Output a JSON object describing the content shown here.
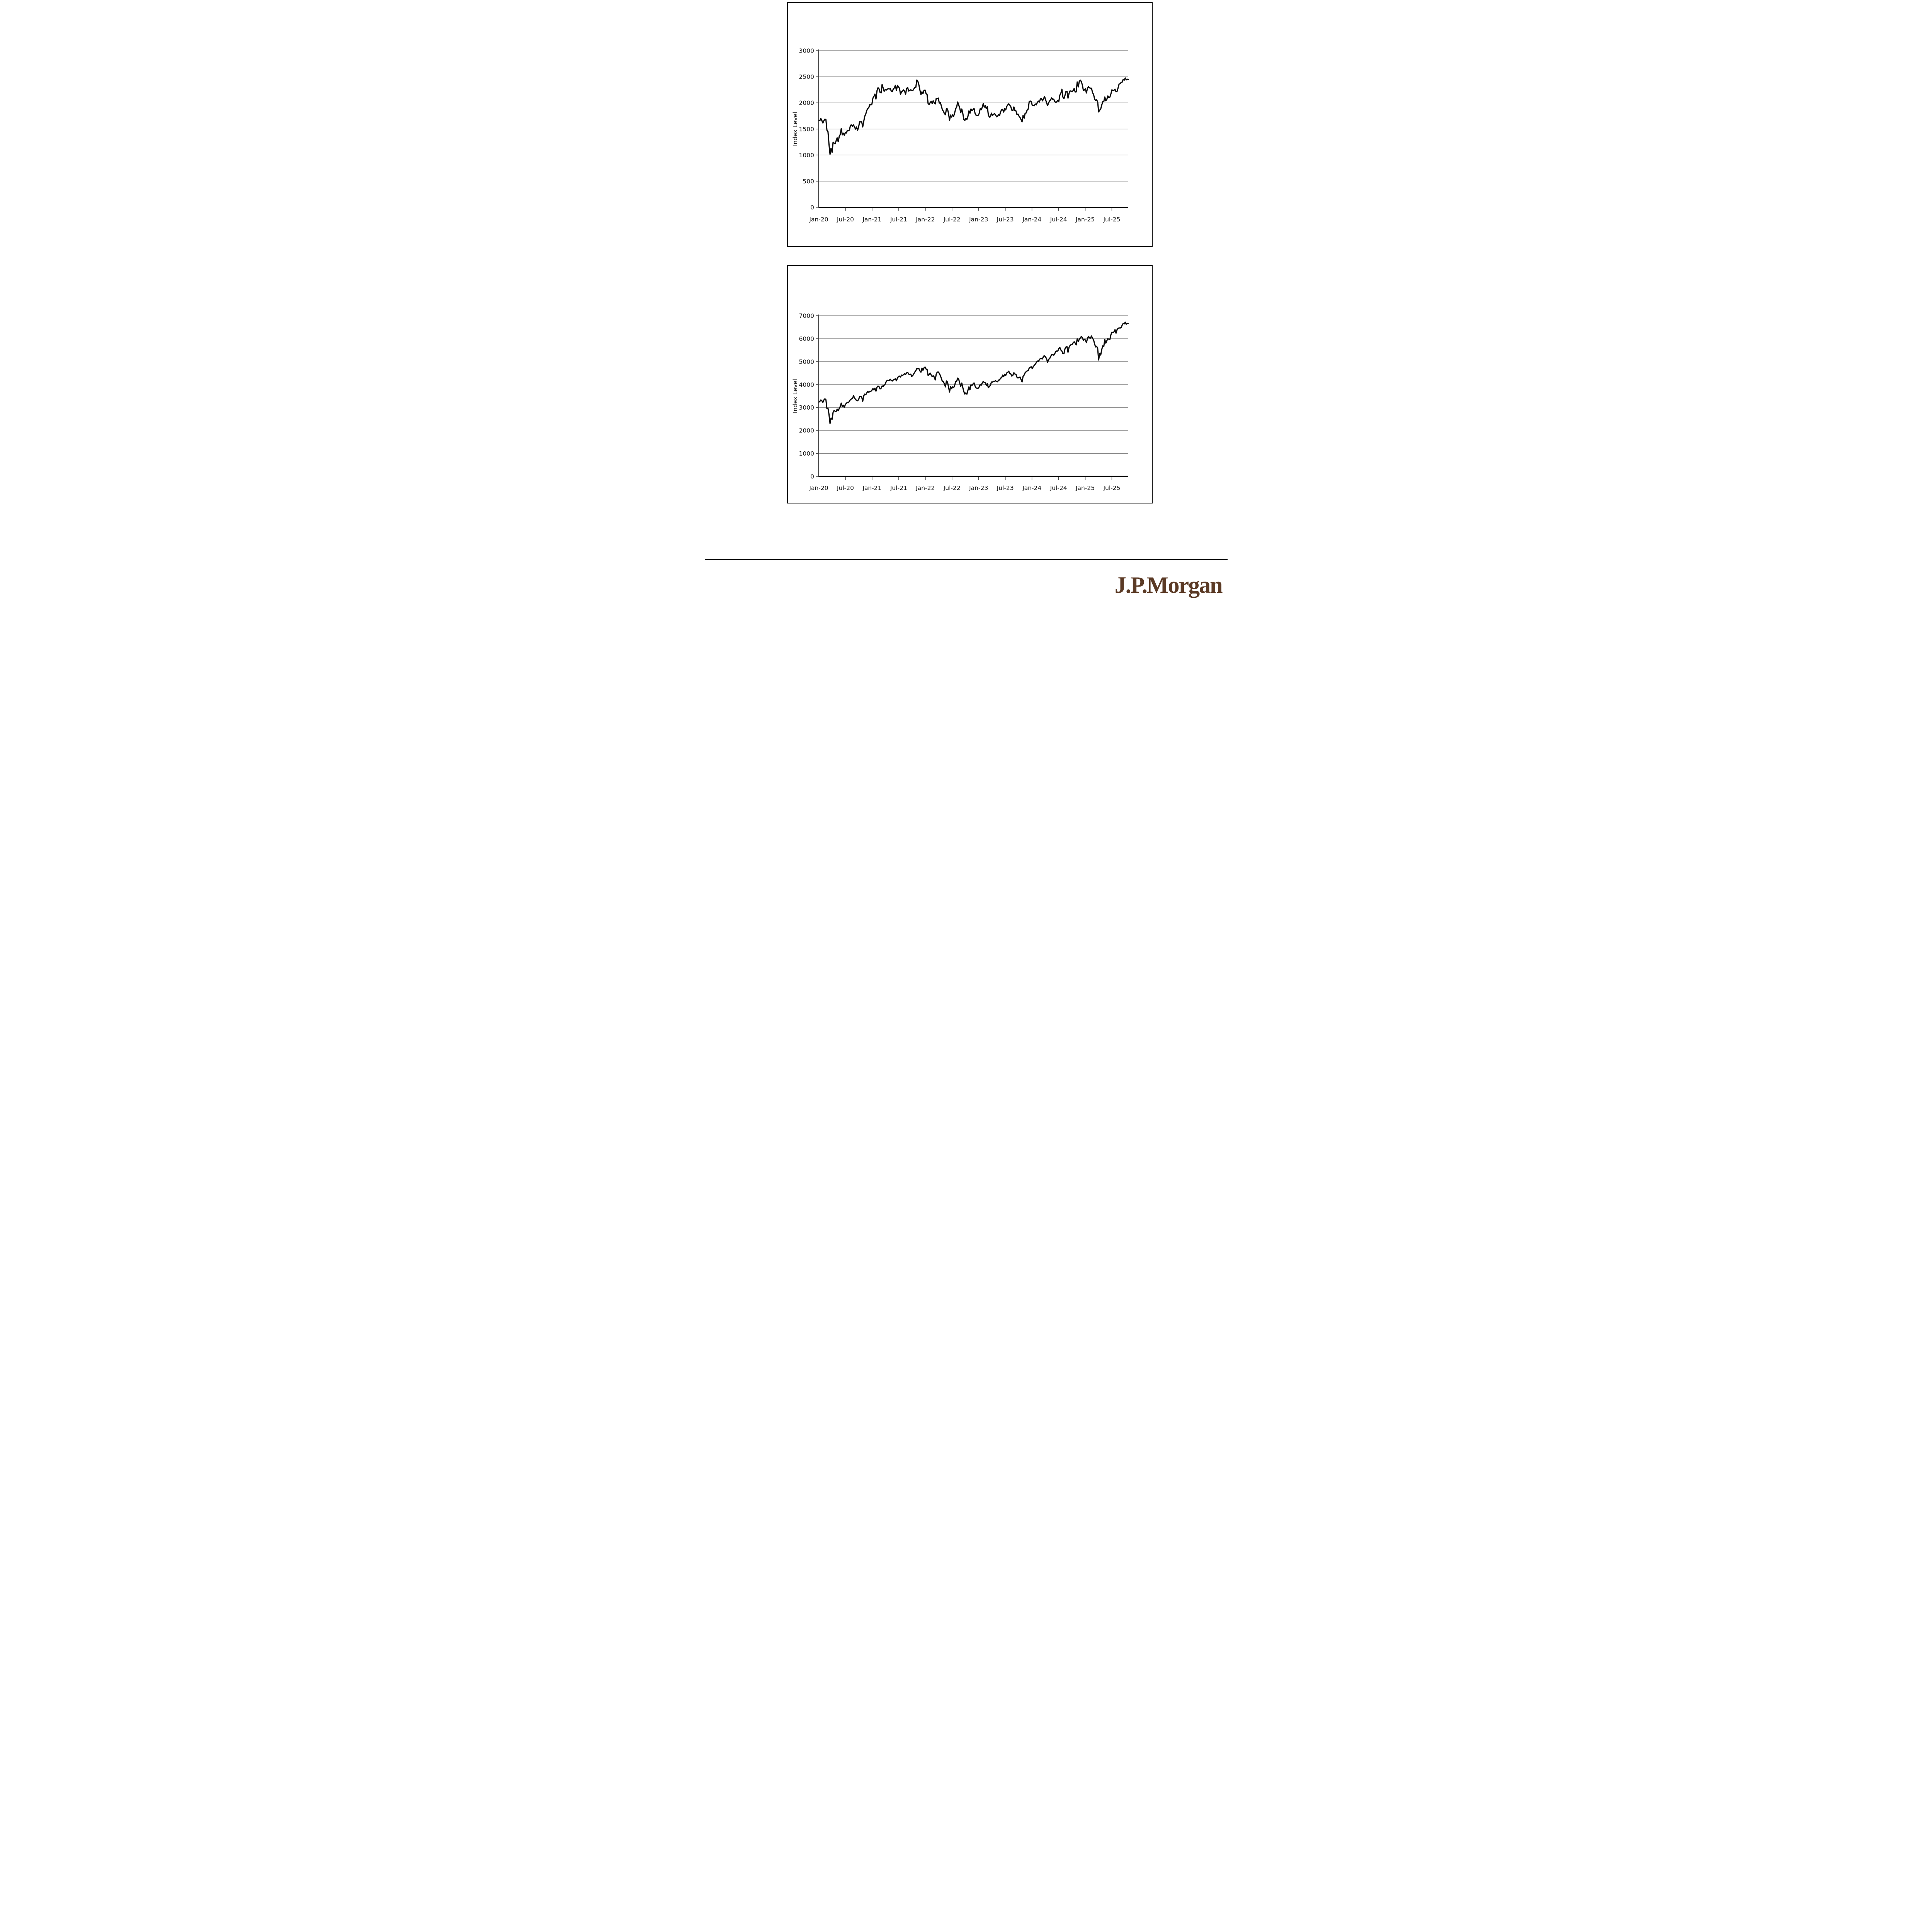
{
  "page": {
    "background": "#ffffff"
  },
  "footer": {
    "logo_text": "J.P.Morgan",
    "logo_color": "#5b3a25",
    "divider_color": "#000000"
  },
  "chart_data": [
    {
      "type": "line",
      "title": "",
      "xlabel": "",
      "ylabel": "Index Level",
      "ylim": [
        0,
        3000
      ],
      "ytick_interval": 500,
      "ytick_labels": [
        "0",
        "500",
        "1000",
        "1500",
        "2000",
        "2500",
        "3000"
      ],
      "xtick_labels": [
        "Jan-20",
        "Jul-20",
        "Jan-21",
        "Jul-21",
        "Jan-22",
        "Jul-22",
        "Jan-23",
        "Jul-23",
        "Jan-24",
        "Jul-24",
        "Jan-25",
        "Jul-25"
      ],
      "xtick_months": [
        0,
        6,
        12,
        18,
        24,
        30,
        36,
        42,
        48,
        54,
        60,
        66
      ],
      "frequency": "weekly",
      "end_month": 69.7,
      "grid": "horizontal",
      "grid_color": "#7f7f7f",
      "legend": "none",
      "line_color": "#0a0a0a",
      "series": [
        {
          "name": "Index Level (weekly)",
          "values": [
            1660,
            1658,
            1700,
            1662,
            1614,
            1657,
            1688,
            1679,
            1476,
            1449,
            1210,
            1014,
            1132,
            1052,
            1246,
            1229,
            1217,
            1274,
            1330,
            1256,
            1355,
            1394,
            1507,
            1387,
            1418,
            1379,
            1431,
            1423,
            1473,
            1468,
            1480,
            1570,
            1577,
            1552,
            1578,
            1535,
            1497,
            1537,
            1475,
            1539,
            1637,
            1634,
            1640,
            1538,
            1644,
            1744,
            1785,
            1855,
            1892,
            1911,
            1970,
            1959,
            1975,
            2091,
            2123,
            2168,
            2073,
            2233,
            2289,
            2266,
            2201,
            2192,
            2353,
            2287,
            2221,
            2253,
            2243,
            2262,
            2271,
            2266,
            2271,
            2224,
            2215,
            2268,
            2286,
            2336,
            2237,
            2334,
            2306,
            2280,
            2163,
            2209,
            2226,
            2247,
            2223,
            2167,
            2277,
            2292,
            2227,
            2237,
            2248,
            2241,
            2233,
            2265,
            2291,
            2297,
            2437,
            2411,
            2343,
            2245,
            2159,
            2211,
            2174,
            2241,
            2245,
            2179,
            2162,
            1988,
            1968,
            2002,
            2030,
            1987,
            2040,
            2001,
            1979,
            2086,
            2078,
            2091,
            1995,
            2005,
            1941,
            1864,
            1840,
            1793,
            1773,
            1888,
            1883,
            1800,
            1666,
            1766,
            1727,
            1769,
            1744,
            1806,
            1885,
            1922,
            2017,
            1957,
            1900,
            1810,
            1882,
            1799,
            1680,
            1664,
            1702,
            1682,
            1742,
            1847,
            1800,
            1882,
            1850,
            1869,
            1893,
            1797,
            1763,
            1761,
            1761,
            1793,
            1887,
            1868,
            1911,
            1986,
            1918,
            1946,
            1890,
            1928,
            1772,
            1726,
            1735,
            1802,
            1755,
            1781,
            1792,
            1774,
            1735,
            1741,
            1774,
            1757,
            1831,
            1866,
            1875,
            1822,
            1889,
            1865,
            1931,
            1960,
            1981,
            1957,
            1925,
            1859,
            1853,
            1921,
            1852,
            1847,
            1776,
            1785,
            1746,
            1720,
            1681,
            1637,
            1760,
            1705,
            1798,
            1807,
            1863,
            1881,
            2025,
            2034,
            2027,
            1951,
            1951,
            1944,
            1978,
            1963,
            2010,
            2032,
            2016,
            2076,
            2083,
            2039,
            2072,
            2124,
            2063,
            2003,
            1947,
            2002,
            2036,
            2060,
            2096,
            2070,
            2070,
            2026,
            2006,
            2022,
            2048,
            2027,
            2148,
            2184,
            2260,
            2109,
            2081,
            2142,
            2218,
            2218,
            2091,
            2182,
            2228,
            2225,
            2213,
            2234,
            2276,
            2208,
            2210,
            2400,
            2304,
            2407,
            2435,
            2409,
            2346,
            2242,
            2245,
            2269,
            2189,
            2276,
            2308,
            2288,
            2280,
            2280,
            2195,
            2163,
            2075,
            2044,
            2057,
            2023,
            1827,
            1860,
            1881,
            1958,
            2021,
            2023,
            2113,
            2040,
            2066,
            2132,
            2101,
            2110,
            2173,
            2249,
            2235,
            2240,
            2261,
            2212,
            2218,
            2287,
            2361,
            2366,
            2391,
            2397,
            2449,
            2434,
            2476,
            2440,
            2452,
            2448
          ]
        }
      ]
    },
    {
      "type": "line",
      "title": "",
      "xlabel": "",
      "ylabel": "Index Level",
      "ylim": [
        0,
        7000
      ],
      "ytick_interval": 1000,
      "ytick_labels": [
        "0",
        "1000",
        "2000",
        "3000",
        "4000",
        "5000",
        "6000",
        "7000"
      ],
      "xtick_labels": [
        "Jan-20",
        "Jul-20",
        "Jan-21",
        "Jul-21",
        "Jan-22",
        "Jul-22",
        "Jan-23",
        "Jul-23",
        "Jan-24",
        "Jul-24",
        "Jan-25",
        "Jul-25"
      ],
      "xtick_months": [
        0,
        6,
        12,
        18,
        24,
        30,
        36,
        42,
        48,
        54,
        60,
        66
      ],
      "frequency": "weekly",
      "end_month": 69.7,
      "grid": "horizontal",
      "grid_color": "#7f7f7f",
      "legend": "none",
      "line_color": "#0a0a0a",
      "series": [
        {
          "name": "Index Level (weekly)",
          "values": [
            3235,
            3265,
            3330,
            3295,
            3226,
            3328,
            3380,
            3338,
            2954,
            2972,
            2711,
            2305,
            2541,
            2489,
            2790,
            2875,
            2837,
            2831,
            2930,
            2864,
            2955,
            3044,
            3194,
            3041,
            3098,
            3009,
            3130,
            3185,
            3225,
            3216,
            3271,
            3351,
            3373,
            3397,
            3508,
            3427,
            3341,
            3319,
            3298,
            3348,
            3477,
            3484,
            3465,
            3270,
            3509,
            3585,
            3558,
            3638,
            3699,
            3663,
            3709,
            3703,
            3756,
            3825,
            3768,
            3841,
            3714,
            3887,
            3935,
            3907,
            3811,
            3842,
            3943,
            3913,
            3975,
            4020,
            4129,
            4185,
            4180,
            4181,
            4233,
            4174,
            4156,
            4204,
            4230,
            4247,
            4166,
            4281,
            4352,
            4370,
            4327,
            4412,
            4395,
            4437,
            4468,
            4442,
            4509,
            4535,
            4459,
            4433,
            4455,
            4357,
            4391,
            4471,
            4545,
            4605,
            4698,
            4683,
            4698,
            4595,
            4538,
            4712,
            4621,
            4726,
            4766,
            4677,
            4663,
            4398,
            4432,
            4501,
            4419,
            4349,
            4385,
            4329,
            4204,
            4463,
            4543,
            4546,
            4488,
            4393,
            4272,
            4132,
            4123,
            4024,
            3901,
            4158,
            4109,
            3901,
            3675,
            3912,
            3825,
            3899,
            3863,
            3962,
            4130,
            4145,
            4280,
            4228,
            4058,
            3924,
            4067,
            3873,
            3693,
            3586,
            3640,
            3583,
            3753,
            3901,
            3771,
            3993,
            3965,
            4026,
            4072,
            3934,
            3852,
            3845,
            3840,
            3895,
            3999,
            3973,
            4071,
            4136,
            4090,
            4079,
            3970,
            4046,
            3862,
            3917,
            3971,
            4109,
            4105,
            4138,
            4134,
            4169,
            4136,
            4124,
            4192,
            4205,
            4282,
            4299,
            4410,
            4348,
            4450,
            4399,
            4505,
            4536,
            4582,
            4478,
            4464,
            4370,
            4406,
            4516,
            4457,
            4450,
            4320,
            4288,
            4309,
            4328,
            4224,
            4117,
            4358,
            4415,
            4514,
            4559,
            4595,
            4604,
            4719,
            4755,
            4770,
            4697,
            4784,
            4840,
            4891,
            4959,
            5027,
            5006,
            5089,
            5137,
            5124,
            5117,
            5234,
            5254,
            5204,
            5123,
            4967,
            5100,
            5128,
            5223,
            5303,
            5305,
            5278,
            5347,
            5432,
            5465,
            5460,
            5567,
            5615,
            5505,
            5459,
            5347,
            5344,
            5554,
            5635,
            5648,
            5408,
            5626,
            5703,
            5738,
            5751,
            5815,
            5865,
            5808,
            5729,
            5996,
            5871,
            5969,
            6032,
            6090,
            6051,
            5931,
            5971,
            5942,
            5827,
            5997,
            6101,
            6041,
            6026,
            6115,
            6013,
            5955,
            5770,
            5639,
            5668,
            5581,
            5074,
            5363,
            5283,
            5525,
            5687,
            5660,
            5958,
            5803,
            5912,
            6000,
            5977,
            5968,
            6173,
            6279,
            6260,
            6297,
            6389,
            6238,
            6389,
            6450,
            6467,
            6460,
            6482,
            6584,
            6664,
            6644,
            6716,
            6629,
            6664,
            6654
          ]
        }
      ]
    }
  ]
}
